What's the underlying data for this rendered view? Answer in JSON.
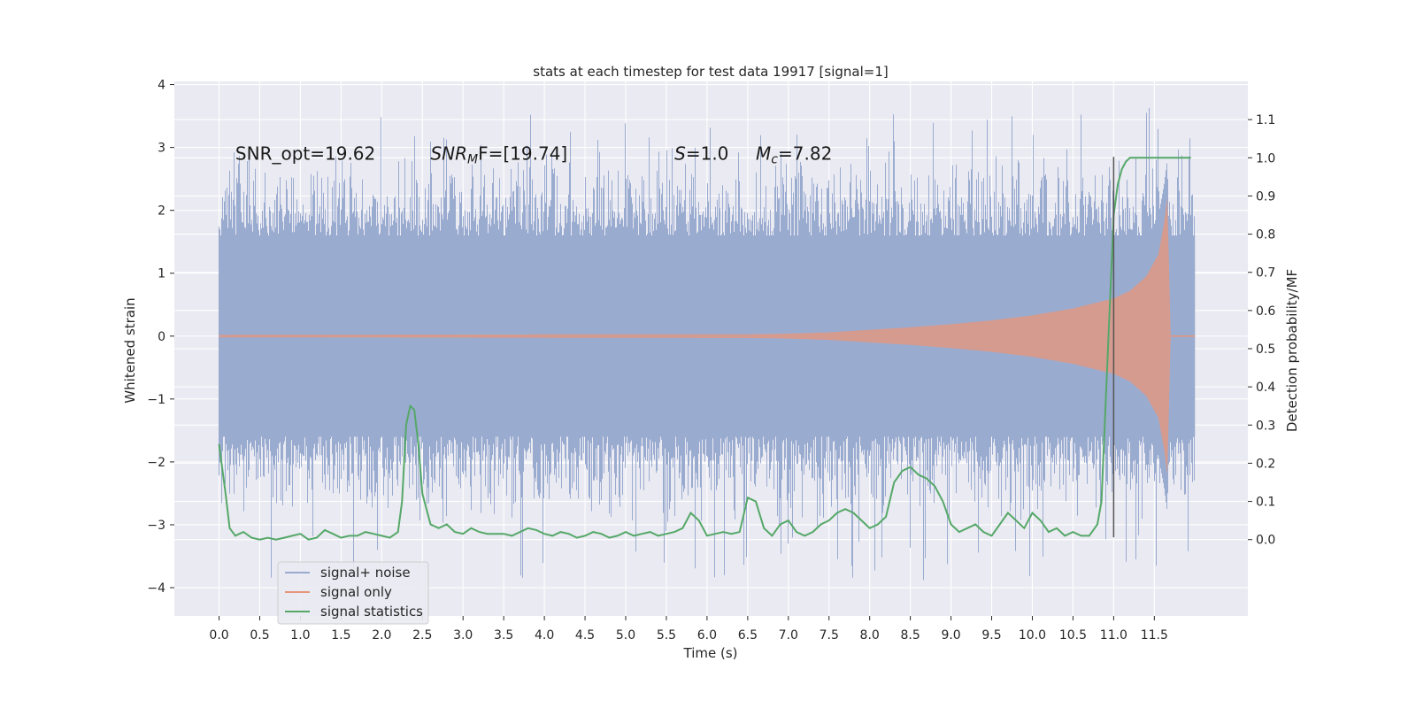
{
  "chart_data": {
    "type": "line",
    "title": "stats at each timestep for test data 19917 [signal=1]",
    "xlabel": "Time (s)",
    "ylabel": "Whitened strain",
    "ylabel_right": "Detection probability/MF",
    "xlim": [
      -0.55,
      12.65
    ],
    "ylim": [
      -4.45,
      4.05
    ],
    "ylim_right": [
      -0.2,
      1.2
    ],
    "x_ticks": [
      0.0,
      0.5,
      1.0,
      1.5,
      2.0,
      2.5,
      3.0,
      3.5,
      4.0,
      4.5,
      5.0,
      5.5,
      6.0,
      6.5,
      7.0,
      7.5,
      8.0,
      8.5,
      9.0,
      9.5,
      10.0,
      10.5,
      11.0,
      11.5
    ],
    "x_tick_labels": [
      "0.0",
      "0.5",
      "1.0",
      "1.5",
      "2.0",
      "2.5",
      "3.0",
      "3.5",
      "4.0",
      "4.5",
      "5.0",
      "5.5",
      "6.0",
      "6.5",
      "7.0",
      "7.5",
      "8.0",
      "8.5",
      "9.0",
      "9.5",
      "10.0",
      "10.5",
      "11.0",
      "11.5"
    ],
    "y_ticks": [
      4,
      3,
      2,
      1,
      0,
      -1,
      -2,
      -3,
      -4
    ],
    "y_tick_labels": [
      "4",
      "3",
      "2",
      "1",
      "0",
      "−1",
      "−2",
      "−3",
      "−4"
    ],
    "y_ticks_right": [
      1.1,
      1.0,
      0.9,
      0.8,
      0.7,
      0.6,
      0.5,
      0.4,
      0.3,
      0.2,
      0.1,
      0.0
    ],
    "y_tick_labels_right": [
      "1.1",
      "1.0",
      "0.9",
      "0.8",
      "0.7",
      "0.6",
      "0.5",
      "0.4",
      "0.3",
      "0.2",
      "0.1",
      "0.0"
    ],
    "grid": true,
    "legend_position": "bottom-left",
    "colors": {
      "plot_bg": "#eaeaf2",
      "grid": "#ffffff",
      "noise": "#9aabd0",
      "signal": "#e8967a",
      "stats": "#55a868",
      "marker": "#555555"
    },
    "annotations": [
      {
        "text": "SNR_opt=19.62",
        "x": 0.2,
        "y": 2.9
      },
      {
        "main": "SNR",
        "sub": "M",
        "rest": "F=[19.74]",
        "x": 2.6,
        "y": 2.9
      },
      {
        "main": "S",
        "rest": "=1.0",
        "x": 5.6,
        "y": 2.9
      },
      {
        "main": "M",
        "sub": "c",
        "rest": "=7.82",
        "x": 6.6,
        "y": 2.9
      }
    ],
    "marker_line": {
      "x": 11.0,
      "y_range": [
        -3.2,
        2.85
      ]
    },
    "series": [
      {
        "name": "signal+ noise",
        "axis": "left",
        "t_range": [
          0.0,
          12.0
        ],
        "typical_envelope": [
          -1.6,
          1.6
        ],
        "extreme_range": [
          -3.9,
          3.6
        ]
      },
      {
        "name": "signal only",
        "axis": "left",
        "t_range": [
          0.0,
          11.7
        ],
        "envelope": {
          "t": [
            0.0,
            6.5,
            7.0,
            7.5,
            8.0,
            8.5,
            9.0,
            9.5,
            10.0,
            10.5,
            11.0,
            11.2,
            11.4,
            11.55,
            11.62,
            11.66,
            11.7
          ],
          "amp": [
            0.02,
            0.03,
            0.04,
            0.06,
            0.1,
            0.14,
            0.19,
            0.25,
            0.33,
            0.44,
            0.6,
            0.72,
            0.95,
            1.3,
            1.8,
            2.2,
            0.05
          ]
        }
      },
      {
        "name": "signal statistics",
        "axis": "right",
        "x": [
          0.0,
          0.08,
          0.13,
          0.2,
          0.25,
          0.3,
          0.4,
          0.5,
          0.6,
          0.7,
          0.8,
          0.9,
          1.0,
          1.1,
          1.2,
          1.3,
          1.4,
          1.5,
          1.6,
          1.7,
          1.8,
          1.9,
          2.0,
          2.1,
          2.2,
          2.25,
          2.3,
          2.35,
          2.4,
          2.45,
          2.5,
          2.6,
          2.7,
          2.8,
          2.9,
          3.0,
          3.1,
          3.2,
          3.3,
          3.4,
          3.5,
          3.6,
          3.7,
          3.8,
          3.9,
          4.0,
          4.1,
          4.2,
          4.3,
          4.4,
          4.5,
          4.6,
          4.7,
          4.8,
          4.9,
          5.0,
          5.1,
          5.2,
          5.3,
          5.4,
          5.5,
          5.6,
          5.7,
          5.8,
          5.9,
          6.0,
          6.1,
          6.2,
          6.3,
          6.4,
          6.5,
          6.6,
          6.7,
          6.8,
          6.9,
          7.0,
          7.1,
          7.2,
          7.3,
          7.4,
          7.5,
          7.6,
          7.7,
          7.8,
          7.9,
          8.0,
          8.1,
          8.2,
          8.3,
          8.4,
          8.5,
          8.6,
          8.7,
          8.8,
          8.9,
          9.0,
          9.1,
          9.2,
          9.3,
          9.4,
          9.5,
          9.6,
          9.7,
          9.8,
          9.9,
          10.0,
          10.1,
          10.2,
          10.3,
          10.4,
          10.5,
          10.6,
          10.7,
          10.8,
          10.85,
          10.9,
          10.95,
          11.0,
          11.05,
          11.1,
          11.15,
          11.2,
          11.3,
          11.4,
          11.5,
          11.6,
          11.7,
          11.8,
          11.9,
          11.95
        ],
        "values": [
          0.25,
          0.12,
          0.03,
          0.01,
          0.015,
          0.02,
          0.005,
          0.0,
          0.005,
          0.0,
          0.005,
          0.01,
          0.015,
          0.0,
          0.005,
          0.025,
          0.015,
          0.005,
          0.01,
          0.01,
          0.02,
          0.015,
          0.01,
          0.005,
          0.02,
          0.1,
          0.3,
          0.35,
          0.34,
          0.25,
          0.12,
          0.04,
          0.03,
          0.04,
          0.02,
          0.015,
          0.03,
          0.02,
          0.015,
          0.015,
          0.015,
          0.01,
          0.02,
          0.03,
          0.025,
          0.015,
          0.01,
          0.02,
          0.015,
          0.005,
          0.01,
          0.02,
          0.015,
          0.005,
          0.01,
          0.02,
          0.01,
          0.015,
          0.02,
          0.01,
          0.015,
          0.02,
          0.03,
          0.07,
          0.05,
          0.01,
          0.015,
          0.02,
          0.015,
          0.02,
          0.11,
          0.1,
          0.03,
          0.01,
          0.04,
          0.05,
          0.02,
          0.01,
          0.02,
          0.04,
          0.05,
          0.07,
          0.08,
          0.07,
          0.05,
          0.03,
          0.04,
          0.06,
          0.15,
          0.18,
          0.19,
          0.17,
          0.16,
          0.14,
          0.1,
          0.04,
          0.02,
          0.03,
          0.04,
          0.02,
          0.01,
          0.04,
          0.07,
          0.05,
          0.03,
          0.07,
          0.05,
          0.02,
          0.03,
          0.01,
          0.02,
          0.01,
          0.01,
          0.04,
          0.1,
          0.35,
          0.6,
          0.85,
          0.93,
          0.97,
          0.99,
          1.0,
          1.0,
          1.0,
          1.0,
          1.0,
          1.0,
          1.0,
          1.0,
          1.0
        ]
      }
    ]
  }
}
